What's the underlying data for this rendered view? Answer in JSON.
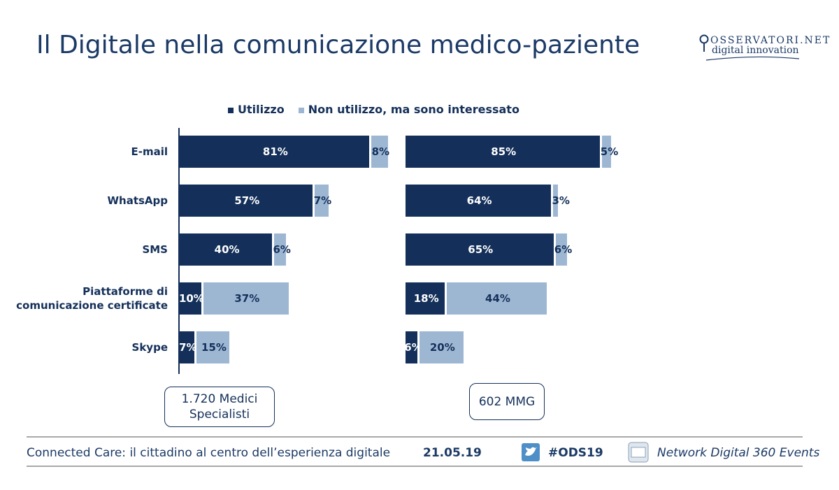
{
  "header": {
    "title": "Il Digitale nella comunicazione medico-paziente",
    "logo_top": "OSSERVATORI.NET",
    "logo_bottom": "digital innovation"
  },
  "chart_data": [
    {
      "type": "bar",
      "orientation": "horizontal",
      "stacked": true,
      "xlim": [
        0,
        100
      ],
      "categories": [
        "E-mail",
        "WhatsApp",
        "SMS",
        "Piattaforme di comunicazione certificate",
        "Skype"
      ],
      "series": [
        {
          "name": "Utilizzo",
          "color": "#14305a",
          "values": [
            81,
            57,
            40,
            10,
            7
          ],
          "value_labels": [
            "81%",
            "57%",
            "40%",
            "10%",
            "7%"
          ]
        },
        {
          "name": "Non utilizzo, ma sono interessato",
          "color": "#9db7d3",
          "values": [
            8,
            7,
            6,
            37,
            15
          ],
          "value_labels": [
            "8%",
            "7%",
            "6%",
            "37%",
            "15%"
          ]
        }
      ],
      "note": "1.720 Medici Specialisti"
    },
    {
      "type": "bar",
      "orientation": "horizontal",
      "stacked": true,
      "xlim": [
        0,
        100
      ],
      "series": [
        {
          "color": "#14305a",
          "values": [
            85,
            64,
            65,
            18,
            6
          ],
          "value_labels": [
            "85%",
            "64%",
            "65%",
            "18%",
            "6%"
          ]
        },
        {
          "color": "#9db7d3",
          "values": [
            5,
            3,
            6,
            44,
            20
          ],
          "value_labels": [
            "5%",
            "3%",
            "6%",
            "44%",
            "20%"
          ]
        }
      ],
      "note": "602 MMG"
    }
  ],
  "footer": {
    "event": "Connected Care: il cittadino al centro dell’esperienza digitale",
    "date": "21.05.19",
    "hashtag": "#ODS19",
    "network": "Network Digital 360 Events"
  }
}
